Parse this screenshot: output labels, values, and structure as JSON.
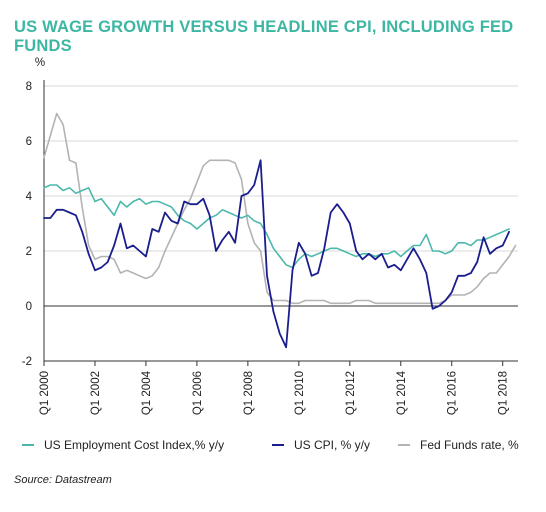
{
  "title": "US WAGE GROWTH VERSUS HEADLINE CPI, INCLUDING FED FUNDS",
  "source": "Source: Datastream",
  "colors": {
    "title": "#3DB7A4",
    "eci": "#4CB8AC",
    "cpi": "#1A1E8C",
    "fed": "#B3B3B3",
    "axis": "#333333",
    "grid": "#D9D9D9"
  },
  "chart_data": {
    "type": "line",
    "title": "US WAGE GROWTH VERSUS HEADLINE CPI, INCLUDING FED FUNDS",
    "ylabel": "%",
    "xlabel": "",
    "ylim": [
      -2,
      8
    ],
    "yticks": [
      -2,
      0,
      2,
      4,
      6,
      8
    ],
    "xlim": [
      2000.0,
      2018.25
    ],
    "xticks": [
      {
        "value": 2000,
        "label": "Q1 2000"
      },
      {
        "value": 2002,
        "label": "Q1 2002"
      },
      {
        "value": 2004,
        "label": "Q1 2004"
      },
      {
        "value": 2006,
        "label": "Q1 2006"
      },
      {
        "value": 2008,
        "label": "Q1 2008"
      },
      {
        "value": 2010,
        "label": "Q1 2010"
      },
      {
        "value": 2012,
        "label": "Q1 2012"
      },
      {
        "value": 2014,
        "label": "Q1 2014"
      },
      {
        "value": 2016,
        "label": "Q1 2016"
      },
      {
        "value": 2018,
        "label": "Q1 2018"
      }
    ],
    "grid": "horizontal",
    "legend_position": "bottom",
    "series": [
      {
        "name": "US Employment Cost Index,% y/y",
        "color_key": "eci",
        "points": [
          [
            2000.0,
            4.3
          ],
          [
            2000.25,
            4.4
          ],
          [
            2000.5,
            4.4
          ],
          [
            2000.75,
            4.2
          ],
          [
            2001.0,
            4.3
          ],
          [
            2001.25,
            4.1
          ],
          [
            2001.5,
            4.2
          ],
          [
            2001.75,
            4.3
          ],
          [
            2002.0,
            3.8
          ],
          [
            2002.25,
            3.9
          ],
          [
            2002.5,
            3.6
          ],
          [
            2002.75,
            3.3
          ],
          [
            2003.0,
            3.8
          ],
          [
            2003.25,
            3.6
          ],
          [
            2003.5,
            3.8
          ],
          [
            2003.75,
            3.9
          ],
          [
            2004.0,
            3.7
          ],
          [
            2004.25,
            3.8
          ],
          [
            2004.5,
            3.8
          ],
          [
            2004.75,
            3.7
          ],
          [
            2005.0,
            3.6
          ],
          [
            2005.25,
            3.3
          ],
          [
            2005.5,
            3.1
          ],
          [
            2005.75,
            3.0
          ],
          [
            2006.0,
            2.8
          ],
          [
            2006.25,
            3.0
          ],
          [
            2006.5,
            3.2
          ],
          [
            2006.75,
            3.3
          ],
          [
            2007.0,
            3.5
          ],
          [
            2007.25,
            3.4
          ],
          [
            2007.5,
            3.3
          ],
          [
            2007.75,
            3.2
          ],
          [
            2008.0,
            3.3
          ],
          [
            2008.25,
            3.1
          ],
          [
            2008.5,
            3.0
          ],
          [
            2008.75,
            2.6
          ],
          [
            2009.0,
            2.1
          ],
          [
            2009.25,
            1.8
          ],
          [
            2009.5,
            1.5
          ],
          [
            2009.75,
            1.4
          ],
          [
            2010.0,
            1.7
          ],
          [
            2010.25,
            1.9
          ],
          [
            2010.5,
            1.8
          ],
          [
            2010.75,
            1.9
          ],
          [
            2011.0,
            2.0
          ],
          [
            2011.25,
            2.1
          ],
          [
            2011.5,
            2.1
          ],
          [
            2011.75,
            2.0
          ],
          [
            2012.0,
            1.9
          ],
          [
            2012.25,
            1.8
          ],
          [
            2012.5,
            1.9
          ],
          [
            2012.75,
            1.9
          ],
          [
            2013.0,
            1.8
          ],
          [
            2013.25,
            1.9
          ],
          [
            2013.5,
            1.9
          ],
          [
            2013.75,
            2.0
          ],
          [
            2014.0,
            1.8
          ],
          [
            2014.25,
            2.0
          ],
          [
            2014.5,
            2.2
          ],
          [
            2014.75,
            2.2
          ],
          [
            2015.0,
            2.6
          ],
          [
            2015.25,
            2.0
          ],
          [
            2015.5,
            2.0
          ],
          [
            2015.75,
            1.9
          ],
          [
            2016.0,
            2.0
          ],
          [
            2016.25,
            2.3
          ],
          [
            2016.5,
            2.3
          ],
          [
            2016.75,
            2.2
          ],
          [
            2017.0,
            2.4
          ],
          [
            2017.25,
            2.4
          ],
          [
            2017.5,
            2.5
          ],
          [
            2017.75,
            2.6
          ],
          [
            2018.0,
            2.7
          ],
          [
            2018.25,
            2.8
          ]
        ]
      },
      {
        "name": "US CPI, % y/y",
        "color_key": "cpi",
        "points": [
          [
            2000.0,
            3.2
          ],
          [
            2000.25,
            3.2
          ],
          [
            2000.5,
            3.5
          ],
          [
            2000.75,
            3.5
          ],
          [
            2001.0,
            3.4
          ],
          [
            2001.25,
            3.3
          ],
          [
            2001.5,
            2.7
          ],
          [
            2001.75,
            1.9
          ],
          [
            2002.0,
            1.3
          ],
          [
            2002.25,
            1.4
          ],
          [
            2002.5,
            1.6
          ],
          [
            2002.75,
            2.2
          ],
          [
            2003.0,
            3.0
          ],
          [
            2003.25,
            2.1
          ],
          [
            2003.5,
            2.2
          ],
          [
            2003.75,
            2.0
          ],
          [
            2004.0,
            1.8
          ],
          [
            2004.25,
            2.8
          ],
          [
            2004.5,
            2.7
          ],
          [
            2004.75,
            3.4
          ],
          [
            2005.0,
            3.1
          ],
          [
            2005.25,
            3.0
          ],
          [
            2005.5,
            3.8
          ],
          [
            2005.75,
            3.7
          ],
          [
            2006.0,
            3.7
          ],
          [
            2006.25,
            3.9
          ],
          [
            2006.5,
            3.3
          ],
          [
            2006.75,
            2.0
          ],
          [
            2007.0,
            2.4
          ],
          [
            2007.25,
            2.7
          ],
          [
            2007.5,
            2.3
          ],
          [
            2007.75,
            4.0
          ],
          [
            2008.0,
            4.1
          ],
          [
            2008.25,
            4.4
          ],
          [
            2008.5,
            5.3
          ],
          [
            2008.75,
            1.1
          ],
          [
            2009.0,
            -0.2
          ],
          [
            2009.25,
            -1.0
          ],
          [
            2009.5,
            -1.5
          ],
          [
            2009.75,
            1.3
          ],
          [
            2010.0,
            2.3
          ],
          [
            2010.25,
            1.9
          ],
          [
            2010.5,
            1.1
          ],
          [
            2010.75,
            1.2
          ],
          [
            2011.0,
            2.1
          ],
          [
            2011.25,
            3.4
          ],
          [
            2011.5,
            3.7
          ],
          [
            2011.75,
            3.4
          ],
          [
            2012.0,
            3.0
          ],
          [
            2012.25,
            2.0
          ],
          [
            2012.5,
            1.7
          ],
          [
            2012.75,
            1.9
          ],
          [
            2013.0,
            1.7
          ],
          [
            2013.25,
            1.9
          ],
          [
            2013.5,
            1.4
          ],
          [
            2013.75,
            1.5
          ],
          [
            2014.0,
            1.3
          ],
          [
            2014.25,
            1.7
          ],
          [
            2014.5,
            2.1
          ],
          [
            2014.75,
            1.7
          ],
          [
            2015.0,
            1.2
          ],
          [
            2015.25,
            -0.1
          ],
          [
            2015.5,
            0.0
          ],
          [
            2015.75,
            0.2
          ],
          [
            2016.0,
            0.5
          ],
          [
            2016.25,
            1.1
          ],
          [
            2016.5,
            1.1
          ],
          [
            2016.75,
            1.2
          ],
          [
            2017.0,
            1.6
          ],
          [
            2017.25,
            2.5
          ],
          [
            2017.5,
            1.9
          ],
          [
            2017.75,
            2.1
          ],
          [
            2018.0,
            2.2
          ],
          [
            2018.25,
            2.7
          ]
        ]
      },
      {
        "name": "Fed Funds rate, %",
        "color_key": "fed",
        "points": [
          [
            2000.0,
            5.4
          ],
          [
            2000.25,
            6.2
          ],
          [
            2000.5,
            7.0
          ],
          [
            2000.75,
            6.6
          ],
          [
            2001.0,
            5.3
          ],
          [
            2001.25,
            5.2
          ],
          [
            2001.5,
            3.6
          ],
          [
            2001.75,
            2.2
          ],
          [
            2002.0,
            1.7
          ],
          [
            2002.25,
            1.8
          ],
          [
            2002.5,
            1.8
          ],
          [
            2002.75,
            1.7
          ],
          [
            2003.0,
            1.2
          ],
          [
            2003.25,
            1.3
          ],
          [
            2003.5,
            1.2
          ],
          [
            2003.75,
            1.1
          ],
          [
            2004.0,
            1.0
          ],
          [
            2004.25,
            1.1
          ],
          [
            2004.5,
            1.4
          ],
          [
            2004.75,
            2.0
          ],
          [
            2005.0,
            2.5
          ],
          [
            2005.25,
            3.0
          ],
          [
            2005.5,
            3.5
          ],
          [
            2005.75,
            3.9
          ],
          [
            2006.0,
            4.5
          ],
          [
            2006.25,
            5.1
          ],
          [
            2006.5,
            5.3
          ],
          [
            2006.75,
            5.3
          ],
          [
            2007.0,
            5.3
          ],
          [
            2007.25,
            5.3
          ],
          [
            2007.5,
            5.2
          ],
          [
            2007.75,
            4.6
          ],
          [
            2008.0,
            3.0
          ],
          [
            2008.25,
            2.3
          ],
          [
            2008.5,
            2.0
          ],
          [
            2008.75,
            0.5
          ],
          [
            2009.0,
            0.2
          ],
          [
            2009.25,
            0.2
          ],
          [
            2009.5,
            0.2
          ],
          [
            2009.75,
            0.1
          ],
          [
            2010.0,
            0.1
          ],
          [
            2010.25,
            0.2
          ],
          [
            2010.5,
            0.2
          ],
          [
            2010.75,
            0.2
          ],
          [
            2011.0,
            0.2
          ],
          [
            2011.25,
            0.1
          ],
          [
            2011.5,
            0.1
          ],
          [
            2011.75,
            0.1
          ],
          [
            2012.0,
            0.1
          ],
          [
            2012.25,
            0.2
          ],
          [
            2012.5,
            0.2
          ],
          [
            2012.75,
            0.2
          ],
          [
            2013.0,
            0.1
          ],
          [
            2013.25,
            0.1
          ],
          [
            2013.5,
            0.1
          ],
          [
            2013.75,
            0.1
          ],
          [
            2014.0,
            0.1
          ],
          [
            2014.25,
            0.1
          ],
          [
            2014.5,
            0.1
          ],
          [
            2014.75,
            0.1
          ],
          [
            2015.0,
            0.1
          ],
          [
            2015.25,
            0.1
          ],
          [
            2015.5,
            0.1
          ],
          [
            2015.75,
            0.2
          ],
          [
            2016.0,
            0.4
          ],
          [
            2016.25,
            0.4
          ],
          [
            2016.5,
            0.4
          ],
          [
            2016.75,
            0.5
          ],
          [
            2017.0,
            0.7
          ],
          [
            2017.25,
            1.0
          ],
          [
            2017.5,
            1.2
          ],
          [
            2017.75,
            1.2
          ],
          [
            2018.0,
            1.5
          ],
          [
            2018.25,
            1.8
          ],
          [
            2018.5,
            2.2
          ]
        ]
      }
    ]
  }
}
